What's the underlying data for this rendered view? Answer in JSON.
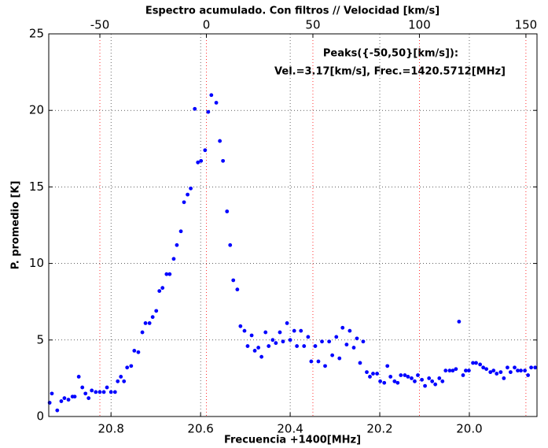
{
  "chart_data": {
    "type": "scatter",
    "title": "Espectro acumulado. Con filtros // Velocidad [km/s]",
    "xlabel": "Frecuencia +1400[MHz]",
    "ylabel": "P. promedio [K]",
    "annotations": [
      "Peaks({-50,50}[km/s]):",
      "Vel.=3.17[km/s], Frec.=1420.5712[MHz]"
    ],
    "color": "#0000ff",
    "xlim": [
      20.939,
      19.849
    ],
    "xticks": [
      20.8,
      20.6,
      20.4,
      20.2,
      {
        "value": 20,
        "label": "20.0"
      }
    ],
    "x2lim": [
      -74,
      155.2
    ],
    "x2ticks": [
      -50,
      0,
      50,
      100,
      150
    ],
    "x2grid_color": "red",
    "ylim": [
      0,
      25
    ],
    "yticks": [
      0,
      5,
      10,
      15,
      20,
      25
    ],
    "grid": true,
    "x": [
      20.937,
      20.932,
      20.92,
      20.911,
      20.904,
      20.895,
      20.886,
      20.881,
      20.872,
      20.864,
      20.857,
      20.85,
      20.843,
      20.834,
      20.825,
      20.816,
      20.809,
      20.8,
      20.791,
      20.785,
      20.778,
      20.771,
      20.764,
      20.755,
      20.748,
      20.739,
      20.73,
      20.723,
      20.714,
      20.707,
      20.699,
      20.692,
      20.685,
      20.676,
      20.669,
      20.66,
      20.653,
      20.644,
      20.637,
      20.629,
      20.622,
      20.613,
      20.606,
      20.599,
      20.59,
      20.583,
      20.576,
      20.565,
      20.557,
      20.55,
      20.541,
      20.534,
      20.527,
      20.518,
      20.511,
      20.502,
      20.495,
      20.486,
      20.479,
      20.471,
      20.464,
      20.455,
      20.448,
      20.439,
      20.432,
      20.423,
      20.416,
      20.407,
      20.4,
      20.391,
      20.385,
      20.376,
      20.369,
      20.36,
      20.353,
      20.344,
      20.337,
      20.329,
      20.322,
      20.313,
      20.306,
      20.297,
      20.29,
      20.283,
      20.274,
      20.267,
      20.258,
      20.251,
      20.244,
      20.237,
      20.229,
      20.222,
      20.215,
      20.206,
      20.199,
      20.19,
      20.183,
      20.176,
      20.167,
      20.16,
      20.153,
      20.144,
      20.137,
      20.129,
      20.122,
      20.115,
      20.106,
      20.099,
      20.09,
      20.083,
      20.076,
      20.067,
      20.06,
      20.053,
      20.044,
      20.037,
      20.03,
      20.023,
      20.014,
      20.008,
      20.001,
      19.992,
      19.985,
      19.976,
      19.969,
      19.962,
      19.953,
      19.946,
      19.939,
      19.93,
      19.923,
      19.915,
      19.908,
      19.899,
      19.892,
      19.885,
      19.876,
      19.869,
      19.862,
      19.853
    ],
    "values": [
      0.9,
      1.5,
      0.4,
      1.0,
      1.2,
      1.1,
      1.3,
      1.3,
      2.6,
      1.9,
      1.5,
      1.2,
      1.7,
      1.6,
      1.6,
      1.6,
      1.9,
      1.6,
      1.6,
      2.3,
      2.6,
      2.3,
      3.2,
      3.3,
      4.3,
      4.2,
      5.5,
      6.1,
      6.1,
      6.5,
      6.9,
      8.2,
      8.4,
      9.3,
      9.3,
      10.3,
      11.2,
      12.1,
      14.0,
      14.5,
      14.9,
      20.1,
      16.6,
      16.7,
      17.4,
      19.9,
      21.0,
      20.5,
      18.0,
      16.7,
      13.4,
      11.2,
      8.9,
      8.3,
      5.9,
      5.6,
      4.6,
      5.3,
      4.3,
      4.5,
      3.9,
      5.5,
      4.6,
      5.0,
      4.8,
      5.5,
      4.9,
      6.1,
      5.0,
      5.6,
      4.6,
      5.6,
      4.6,
      5.2,
      3.6,
      4.6,
      3.6,
      4.9,
      3.3,
      4.9,
      4.0,
      5.2,
      3.8,
      5.8,
      4.7,
      5.6,
      4.5,
      5.1,
      3.5,
      4.9,
      2.9,
      2.6,
      2.8,
      2.8,
      2.3,
      2.2,
      3.3,
      2.6,
      2.3,
      2.2,
      2.7,
      2.7,
      2.6,
      2.5,
      2.3,
      2.7,
      2.4,
      2.0,
      2.5,
      2.3,
      2.1,
      2.5,
      2.3,
      3.0,
      3.0,
      3.0,
      3.1,
      6.2,
      2.7,
      3.0,
      3.0,
      3.5,
      3.5,
      3.4,
      3.2,
      3.1,
      2.9,
      3.0,
      2.8,
      2.9,
      2.5,
      3.2,
      2.9,
      3.2,
      3.0,
      3.0,
      3.0,
      2.7,
      3.2,
      3.2
    ]
  }
}
